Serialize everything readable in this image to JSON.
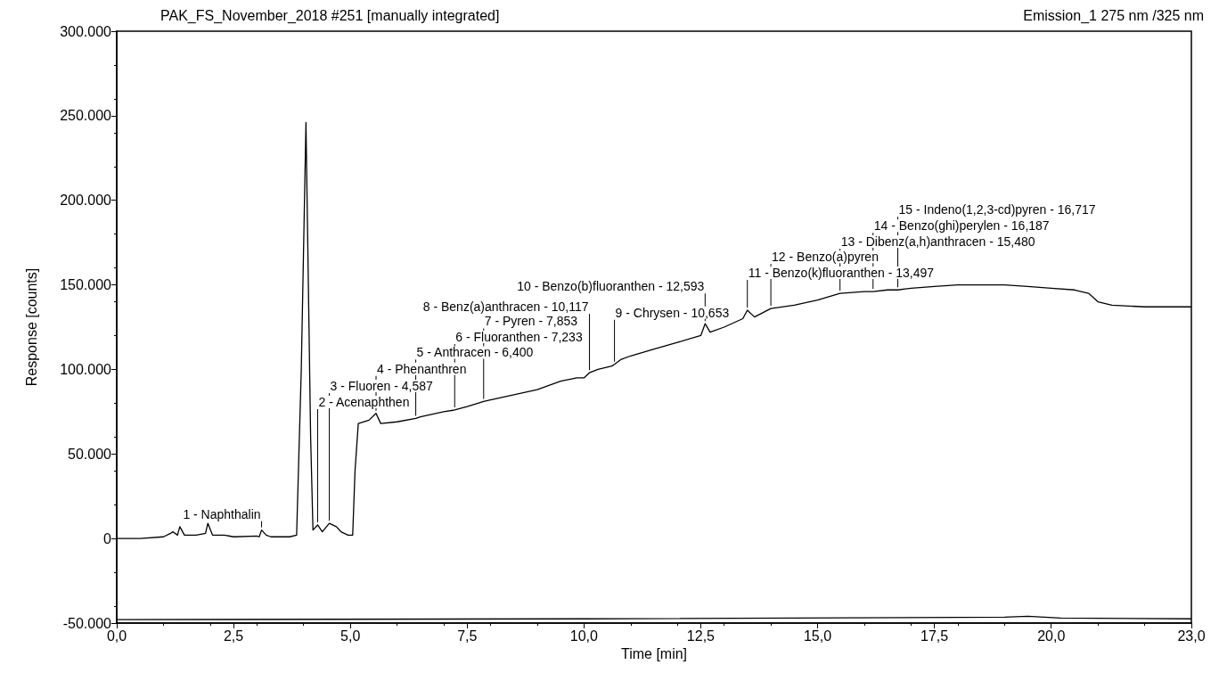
{
  "chart_data": {
    "type": "line",
    "title": "PAK_FS_November_2018 #251 [manually integrated]",
    "subtitle": "Emission_1 275 nm /325 nm",
    "xlabel": "Time [min]",
    "ylabel": "Response [counts]",
    "xlim": [
      0,
      23
    ],
    "ylim": [
      -50000,
      300000
    ],
    "xticks": [
      {
        "value": 0,
        "label": "0,0"
      },
      {
        "value": 2.5,
        "label": "2,5"
      },
      {
        "value": 5,
        "label": "5,0"
      },
      {
        "value": 7.5,
        "label": "7,5"
      },
      {
        "value": 10,
        "label": "10,0"
      },
      {
        "value": 12.5,
        "label": "12,5"
      },
      {
        "value": 15,
        "label": "15,0"
      },
      {
        "value": 17.5,
        "label": "17,5"
      },
      {
        "value": 20,
        "label": "20,0"
      },
      {
        "value": 23,
        "label": "23,0"
      }
    ],
    "yticks": [
      {
        "value": -50000,
        "label": "-50.000"
      },
      {
        "value": 0,
        "label": "0"
      },
      {
        "value": 50000,
        "label": "50.000"
      },
      {
        "value": 100000,
        "label": "100.000"
      },
      {
        "value": 150000,
        "label": "150.000"
      },
      {
        "value": 200000,
        "label": "200.000"
      },
      {
        "value": 250000,
        "label": "250.000"
      },
      {
        "value": 300000,
        "label": "300.000"
      }
    ],
    "grid": false,
    "marker": "none",
    "line_style": "solid",
    "series": [
      {
        "color": "#000000",
        "x": [
          0,
          0.5,
          1.0,
          1.15,
          1.2,
          1.3,
          1.35,
          1.45,
          1.7,
          1.9,
          1.95,
          2.05,
          2.3,
          2.5,
          3.0,
          3.05,
          3.1,
          3.2,
          3.3,
          3.7,
          3.85,
          3.95,
          4.05,
          4.15,
          4.2,
          4.3,
          4.4,
          4.55,
          4.7,
          4.8,
          4.95,
          5.05,
          5.1,
          5.17,
          5.4,
          5.55,
          5.65,
          6.0,
          6.4,
          6.5,
          7.0,
          7.233,
          7.5,
          7.853,
          8.0,
          8.5,
          9.0,
          9.5,
          9.85,
          10.0,
          10.117,
          10.3,
          10.6,
          10.653,
          10.8,
          11.0,
          11.5,
          12.0,
          12.5,
          12.593,
          12.7,
          13.0,
          13.4,
          13.497,
          13.65,
          14.0,
          14.5,
          15.0,
          15.48,
          16.0,
          16.187,
          16.5,
          16.717,
          17.0,
          17.5,
          18.0,
          18.5,
          19.0,
          19.5,
          20.0,
          20.5,
          20.8,
          21.0,
          21.3,
          22.0,
          23.0
        ],
        "values": [
          0,
          0,
          1000,
          3000,
          4000,
          2000,
          7000,
          2000,
          2000,
          3000,
          9000,
          2000,
          2000,
          1000,
          1500,
          1000,
          5000,
          2000,
          1000,
          1000,
          2000,
          100000,
          246000,
          60000,
          5000,
          8000,
          4000,
          9000,
          7000,
          4000,
          2000,
          2000,
          40000,
          68000,
          70000,
          74000,
          68000,
          69000,
          71000,
          72000,
          75000,
          76000,
          78000,
          81000,
          82000,
          85000,
          88000,
          93000,
          95000,
          95000,
          98000,
          100000,
          102000,
          103000,
          106000,
          108000,
          112000,
          116000,
          120000,
          127000,
          122000,
          125000,
          130000,
          135000,
          131000,
          136000,
          138000,
          141000,
          145000,
          146000,
          146000,
          147000,
          147000,
          148000,
          149000,
          150000,
          150000,
          150000,
          149000,
          148000,
          147000,
          145000,
          140000,
          138000,
          137000,
          137000
        ]
      },
      {
        "color": "#000000",
        "x": [
          0,
          10,
          19,
          19.5,
          20.2,
          23
        ],
        "values": [
          -48000,
          -47500,
          -46500,
          -46000,
          -47000,
          -47500
        ]
      }
    ],
    "annotations": [
      {
        "text": "1 - Naphthalin",
        "x": 3.1,
        "y": 5000
      },
      {
        "text": "2 - Acenaphthen",
        "x": 4.3,
        "y": 8000
      },
      {
        "text": "3 - Fluoren - 4,587",
        "x": 4.55,
        "y": 9000
      },
      {
        "text": "4 - Phenanthren",
        "x": 5.55,
        "y": 74000
      },
      {
        "text": "5 - Anthracen - 6,400",
        "x": 6.4,
        "y": 71000
      },
      {
        "text": "6 - Fluoranthen - 7,233",
        "x": 7.233,
        "y": 76000
      },
      {
        "text": "7 - Pyren - 7,853",
        "x": 7.853,
        "y": 81000
      },
      {
        "text": "8 - Benz(a)anthracen - 10,117",
        "x": 10.117,
        "y": 98000
      },
      {
        "text": "9 - Chrysen - 10,653",
        "x": 10.653,
        "y": 103000
      },
      {
        "text": "10 - Benzo(b)fluoranthen - 12,593",
        "x": 12.593,
        "y": 127000
      },
      {
        "text": "11 - Benzo(k)fluoranthen - 13,497",
        "x": 13.497,
        "y": 135000
      },
      {
        "text": "12 - Benzo(a)pyren",
        "x": 14.0,
        "y": 136000
      },
      {
        "text": "13 - Dibenz(a,h)anthracen - 15,480",
        "x": 15.48,
        "y": 145000
      },
      {
        "text": "14 - Benzo(ghi)perylen - 16,187",
        "x": 16.187,
        "y": 146000
      },
      {
        "text": "15 - Indeno(1,2,3-cd)pyren - 16,717",
        "x": 16.717,
        "y": 147000
      }
    ]
  }
}
